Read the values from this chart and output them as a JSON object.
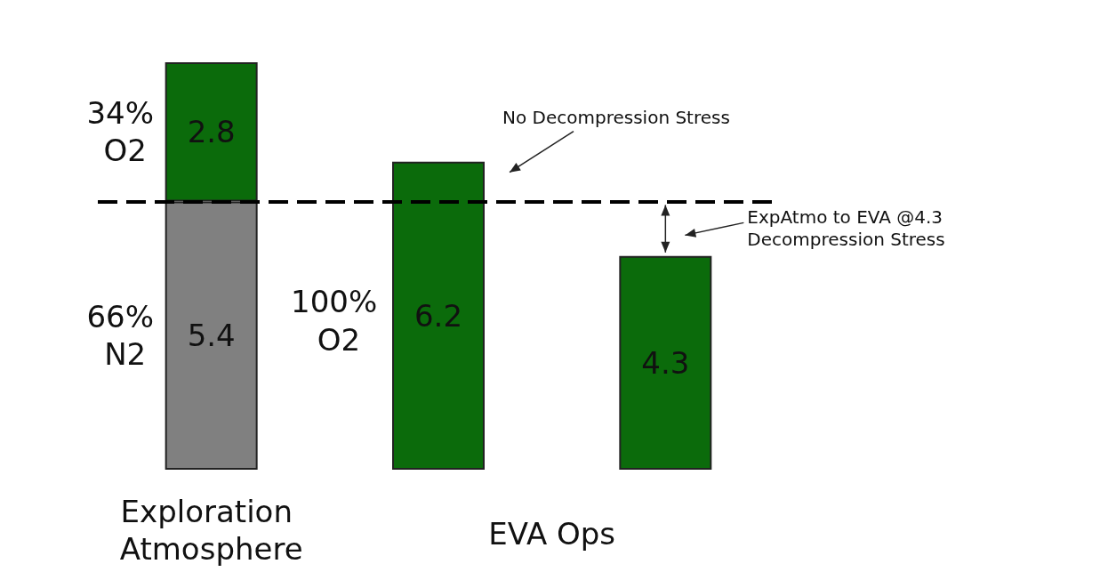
{
  "chart_data": {
    "type": "bar",
    "stacked": true,
    "data_labels": true,
    "categories": [
      "Exploration Atmosphere",
      null,
      null
    ],
    "series": [
      {
        "color": "#808080",
        "values": [
          5.4,
          null,
          null
        ]
      },
      {
        "color": "#0b6b0b",
        "values": [
          2.8,
          6.2,
          4.3
        ]
      }
    ],
    "ref_lines": [
      {
        "axis": "y",
        "value": 5.4,
        "color": "#000000",
        "line_style": "dashed"
      }
    ],
    "annotations": [
      "34% O2",
      "66% N2",
      "100% O2",
      "EVA Ops",
      "No Decompression Stress",
      "ExpAtmo to EVA @4.3 Decompression Stress"
    ]
  }
}
